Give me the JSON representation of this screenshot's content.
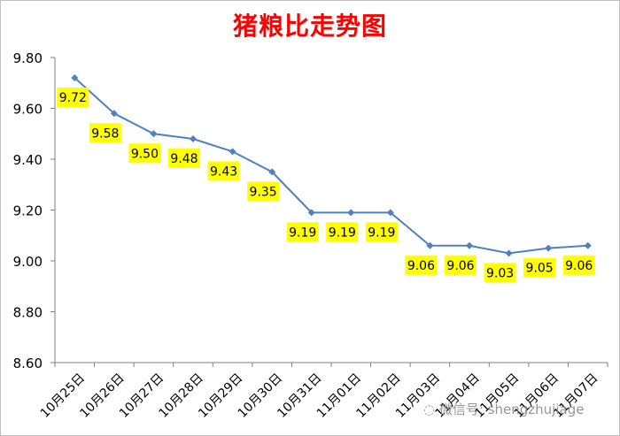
{
  "chart_data": {
    "type": "line",
    "title": "猪粮比走势图",
    "categories": [
      "10月25日",
      "10月26日",
      "10月27日",
      "10月28日",
      "10月29日",
      "10月30日",
      "10月31日",
      "11月01日",
      "11月02日",
      "11月03日",
      "11月04日",
      "11月05日",
      "11月06日",
      "11月07日"
    ],
    "series": [
      {
        "values": [
          9.72,
          9.58,
          9.5,
          9.48,
          9.43,
          9.35,
          9.19,
          9.19,
          9.19,
          9.06,
          9.06,
          9.03,
          9.05,
          9.06
        ]
      }
    ],
    "data_labels": [
      "9.72",
      "9.58",
      "9.50",
      "9.48",
      "9.43",
      "9.35",
      "9.19",
      "9.19",
      "9.19",
      "9.06",
      "9.06",
      "9.03",
      "9.05",
      "9.06"
    ],
    "y_ticks": [
      "8.60",
      "8.80",
      "9.00",
      "9.20",
      "9.40",
      "9.60",
      "9.80"
    ],
    "ylim": [
      8.6,
      9.8
    ],
    "grid": false,
    "legend": "none",
    "colors": {
      "title": "#ff0000",
      "line": "#4f81bd",
      "label_bg": "#ffff00",
      "axis": "#808080"
    }
  },
  "watermark": "微信号: shengzhujiage"
}
